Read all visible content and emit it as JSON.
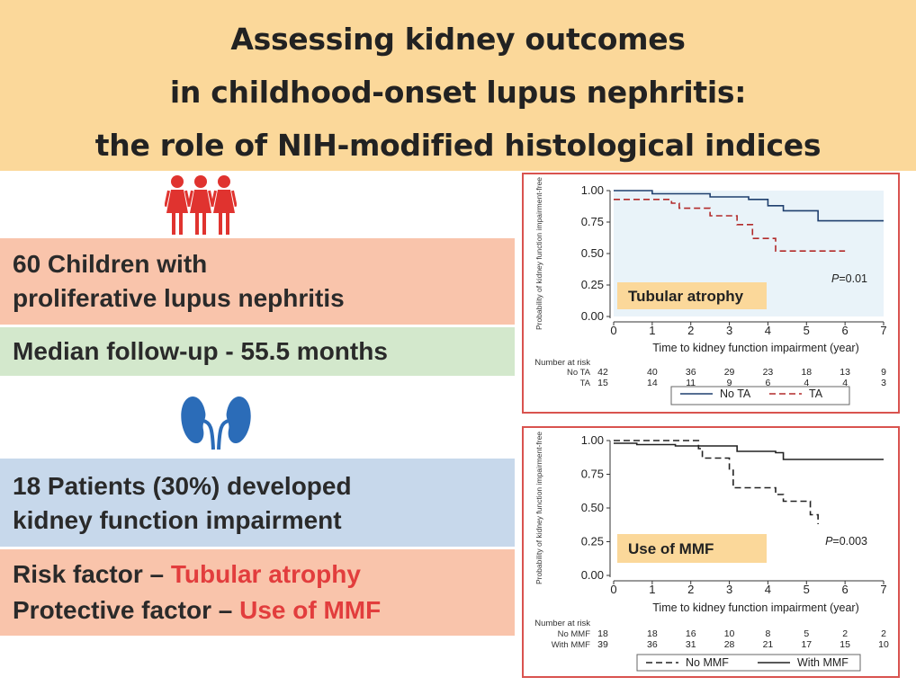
{
  "header": {
    "title_line1": "Assessing kidney outcomes",
    "title_line2": "in childhood-onset lupus nephritis:",
    "title_line3": "the role of NIH-modified histological indices"
  },
  "icons": {
    "people": "three-children-icon",
    "kidney": "kidneys-icon"
  },
  "colors": {
    "header_bg": "#fbd89a",
    "salmon": "#f9c4ab",
    "green": "#d3e8cc",
    "blue": "#c7d8eb",
    "accent_red": "#e23d3d",
    "navy_line": "#1f3f6e",
    "dark_red_line": "#b22a2a",
    "highlight_label": "#fbd89a"
  },
  "boxes": {
    "children_line1": "60 Children with",
    "children_line2": "proliferative lupus nephritis",
    "follow_up": "Median follow-up - 55.5 months",
    "patients_line1": "18 Patients (30%) developed",
    "patients_line2": "kidney function impairment",
    "risk_prefix": "Risk factor – ",
    "risk_value": "Tubular atrophy",
    "protective_prefix": "Protective factor – ",
    "protective_value": "Use of MMF"
  },
  "chart_data": [
    {
      "type": "line",
      "title": "",
      "ylabel": "Probability of kidney function impairment-free",
      "xlabel": "Time to kidney function impairment (year)",
      "xlim": [
        0,
        7
      ],
      "ylim": [
        0,
        1
      ],
      "xticks": [
        "0",
        "1",
        "2",
        "3",
        "4",
        "5",
        "6",
        "7"
      ],
      "yticks": [
        "0.00",
        "0.25",
        "0.50",
        "0.75",
        "1.00"
      ],
      "annotation": "Tubular atrophy",
      "p_value_prefix": "P",
      "p_value_rest": "=0.01",
      "series": [
        {
          "name": "No TA",
          "color": "#1f3f6e",
          "dash": "solid",
          "x": [
            0,
            1,
            2.5,
            3.5,
            4.0,
            4.4,
            5.3,
            7.0
          ],
          "y": [
            1.0,
            0.975,
            0.95,
            0.93,
            0.88,
            0.84,
            0.76,
            0.76
          ]
        },
        {
          "name": "TA",
          "color": "#b22a2a",
          "dash": "dashed",
          "x": [
            0,
            0.5,
            1.5,
            1.7,
            2.2,
            2.5,
            3.0,
            3.2,
            3.6,
            4.0,
            4.2,
            6.0
          ],
          "y": [
            0.93,
            0.93,
            0.9,
            0.86,
            0.86,
            0.8,
            0.8,
            0.73,
            0.62,
            0.62,
            0.52,
            0.52
          ]
        }
      ],
      "risk_table": {
        "label": "Number at risk",
        "rows": [
          {
            "name": "No TA",
            "values": [
              "42",
              "40",
              "36",
              "29",
              "23",
              "18",
              "13",
              "9"
            ]
          },
          {
            "name": "TA",
            "values": [
              "15",
              "14",
              "11",
              "9",
              "6",
              "4",
              "4",
              "3"
            ]
          }
        ]
      },
      "legend": {
        "placement": "bottom",
        "entries": [
          "No TA",
          "TA"
        ]
      }
    },
    {
      "type": "line",
      "title": "",
      "ylabel": "Probability of kidney function impairment-free",
      "xlabel": "Time to kidney function impairment (year)",
      "xlim": [
        0,
        7
      ],
      "ylim": [
        0,
        1
      ],
      "xticks": [
        "0",
        "1",
        "2",
        "3",
        "4",
        "5",
        "6",
        "7"
      ],
      "yticks": [
        "0.00",
        "0.25",
        "0.50",
        "0.75",
        "1.00"
      ],
      "annotation": "Use of MMF",
      "p_value_prefix": "P",
      "p_value_rest": "=0.003",
      "series": [
        {
          "name": "No MMF",
          "color": "#222222",
          "dash": "dashed",
          "x": [
            0,
            1.6,
            2.2,
            2.3,
            2.8,
            3.0,
            3.1,
            4.0,
            4.2,
            4.4,
            5.0,
            5.1,
            5.3
          ],
          "y": [
            1.0,
            1.0,
            0.94,
            0.87,
            0.87,
            0.78,
            0.65,
            0.65,
            0.6,
            0.55,
            0.55,
            0.45,
            0.38
          ]
        },
        {
          "name": "With MMF",
          "color": "#222222",
          "dash": "solid",
          "x": [
            0,
            0.6,
            1.6,
            3.2,
            4.2,
            4.4,
            7.0
          ],
          "y": [
            0.98,
            0.97,
            0.96,
            0.92,
            0.91,
            0.86,
            0.86
          ]
        }
      ],
      "risk_table": {
        "label": "Number at risk",
        "rows": [
          {
            "name": "No MMF",
            "values": [
              "18",
              "18",
              "16",
              "10",
              "8",
              "5",
              "2",
              "2"
            ]
          },
          {
            "name": "With MMF",
            "values": [
              "39",
              "36",
              "31",
              "28",
              "21",
              "17",
              "15",
              "10"
            ]
          }
        ]
      },
      "legend": {
        "placement": "bottom",
        "entries": [
          "No MMF",
          "With MMF"
        ]
      }
    }
  ]
}
